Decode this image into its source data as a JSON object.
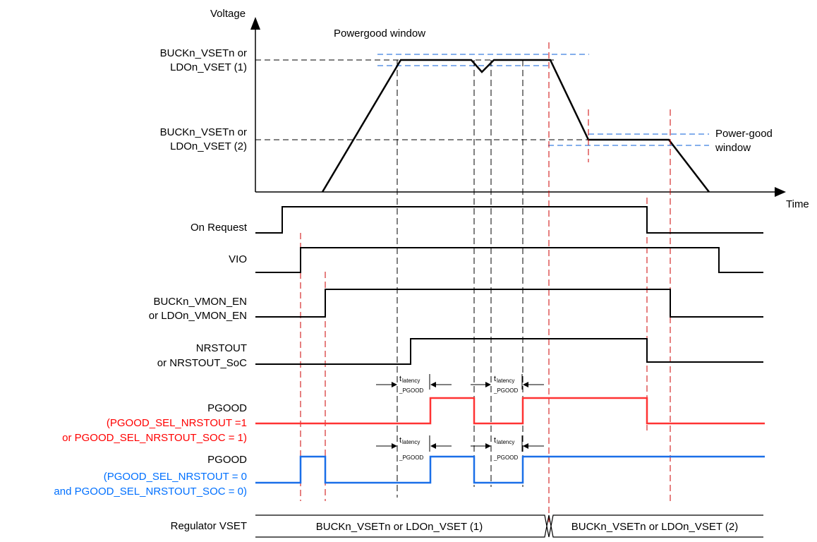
{
  "axes": {
    "y_label": "Voltage",
    "x_label": "Time"
  },
  "top_plot": {
    "level1_label": [
      "BUCKn_VSETn or",
      "LDOn_VSET (1)"
    ],
    "level2_label": [
      "BUCKn_VSETn or",
      "LDOn_VSET (2)"
    ],
    "powergood_window_label": "Powergood window",
    "power_good_window_label": [
      "Power-good",
      "window"
    ]
  },
  "signals": {
    "on_request": "On Request",
    "vio": "VIO",
    "vmon_en": [
      "BUCKn_VMON_EN",
      "or LDOn_VMON_EN"
    ],
    "nrstout": [
      "NRSTOUT",
      "or NRSTOUT_SoC"
    ],
    "pgood_nrstout": {
      "name": "PGOOD",
      "cond": [
        "(PGOOD_SEL_NRSTOUT =1",
        "or PGOOD_SEL_NRSTOUT_SOC = 1)"
      ]
    },
    "pgood_direct": {
      "name": "PGOOD",
      "cond": [
        "(PGOOD_SEL_NRSTOUT = 0",
        "and PGOOD_SEL_NRSTOUT_SOC = 0)"
      ]
    },
    "regulator_vset": "Regulator VSET"
  },
  "bus": {
    "segment1": "BUCKn_VSETn or LDOn_VSET (1)",
    "segment2": "BUCKn_VSETn or LDOn_VSET (2)"
  },
  "latency": {
    "main": "t",
    "sub1": "latency",
    "sub2": "_PGOOD"
  },
  "colors": {
    "signal": "#000000",
    "pgood_sel_1": "#ff3333",
    "pgood_sel_0": "#1a6fe8",
    "window": "#3a7fe0",
    "marker": "#cc0000"
  }
}
